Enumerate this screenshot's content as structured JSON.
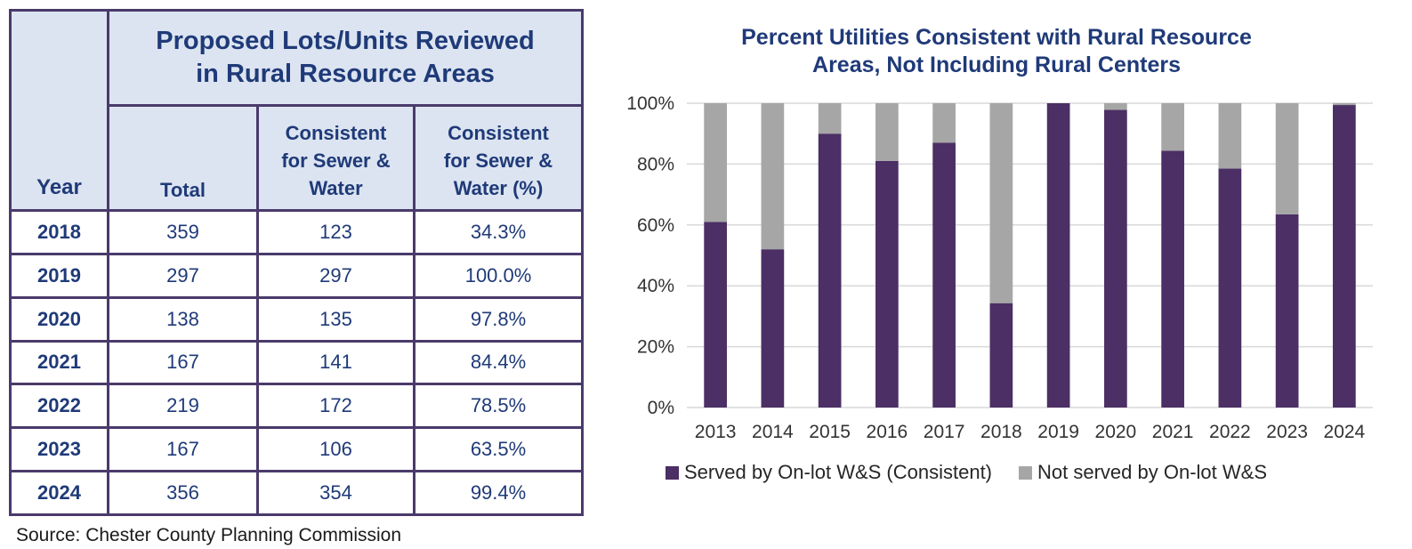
{
  "table": {
    "title": "Proposed Lots/Units Reviewed in Rural Resource Areas",
    "title_line1": "Proposed Lots/Units Reviewed",
    "title_line2": "in Rural Resource Areas",
    "headers": {
      "year": "Year",
      "total": "Total",
      "consistent_line1": "Consistent",
      "consistent_line2": "for Sewer &",
      "consistent_line3": "Water",
      "pct_line1": "Consistent",
      "pct_line2": "for Sewer &",
      "pct_line3": "Water (%)"
    },
    "rows": [
      {
        "year": "2018",
        "total": "359",
        "consistent": "123",
        "pct": "34.3%"
      },
      {
        "year": "2019",
        "total": "297",
        "consistent": "297",
        "pct": "100.0%"
      },
      {
        "year": "2020",
        "total": "138",
        "consistent": "135",
        "pct": "97.8%"
      },
      {
        "year": "2021",
        "total": "167",
        "consistent": "141",
        "pct": "84.4%"
      },
      {
        "year": "2022",
        "total": "219",
        "consistent": "172",
        "pct": "78.5%"
      },
      {
        "year": "2023",
        "total": "167",
        "consistent": "106",
        "pct": "63.5%"
      },
      {
        "year": "2024",
        "total": "356",
        "consistent": "354",
        "pct": "99.4%"
      }
    ]
  },
  "source": "Source: Chester County Planning Commission",
  "chart_data": {
    "type": "bar",
    "stacked": true,
    "title": "Percent Utilities Consistent with Rural Resource Areas, Not Including Rural Centers",
    "title_line1": "Percent Utilities Consistent with Rural Resource",
    "title_line2": "Areas, Not Including Rural Centers",
    "xlabel": "",
    "ylabel": "",
    "ylim": [
      0,
      100
    ],
    "y_ticks": [
      0,
      20,
      40,
      60,
      80,
      100
    ],
    "y_tick_labels": [
      "0%",
      "20%",
      "40%",
      "60%",
      "80%",
      "100%"
    ],
    "categories": [
      "2013",
      "2014",
      "2015",
      "2016",
      "2017",
      "2018",
      "2019",
      "2020",
      "2021",
      "2022",
      "2023",
      "2024"
    ],
    "series": [
      {
        "name": "Served by On-lot W&S (Consistent)",
        "color": "#4b2f65",
        "values": [
          61,
          52,
          90,
          81,
          87,
          34.3,
          100,
          97.8,
          84.4,
          78.5,
          63.5,
          99.4
        ]
      },
      {
        "name": "Not served by On-lot W&S",
        "color": "#a6a6a6",
        "values": [
          39,
          48,
          10,
          19,
          13,
          65.7,
          0,
          2.2,
          15.6,
          21.5,
          36.5,
          0.6
        ]
      }
    ],
    "grid": true,
    "legend_position": "bottom"
  },
  "colors": {
    "header_bg": "#dce4f1",
    "header_text": "#1f3a78",
    "border": "#4a3a6b",
    "gridline": "#d9d9d9"
  }
}
